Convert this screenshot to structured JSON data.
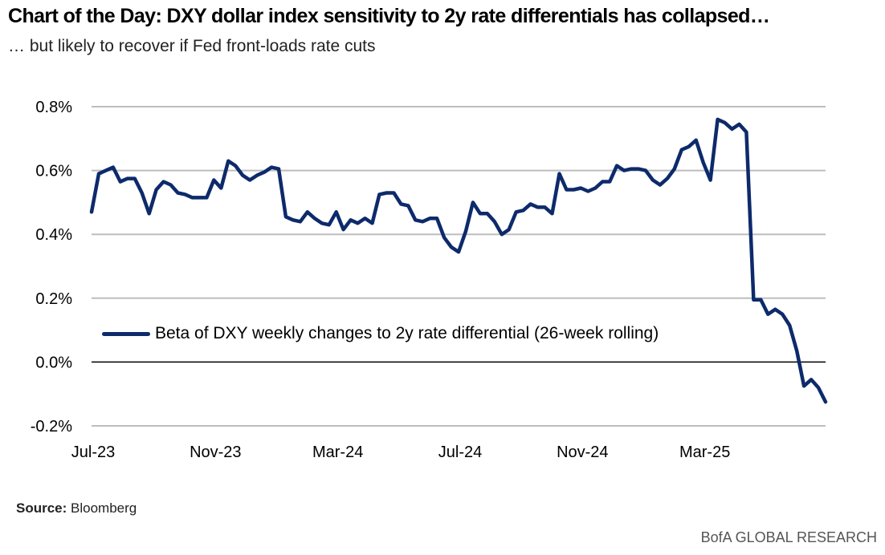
{
  "header": {
    "title": "Chart of the Day: DXY dollar index sensitivity to 2y rate differentials has collapsed…",
    "subtitle": "… but likely to recover if Fed front-loads rate cuts"
  },
  "footer": {
    "source_label": "Source:",
    "source_value": "Bloomberg",
    "brand": "BofA GLOBAL RESEARCH"
  },
  "colors": {
    "series": "#0d2a6b",
    "grid": "#bdbdbd",
    "zero_line": "#000000"
  },
  "chart_data": {
    "type": "line",
    "title": "Chart of the Day: DXY dollar index sensitivity to 2y rate differentials has collapsed…",
    "xlabel": "",
    "ylabel": "",
    "ylim": [
      -0.2,
      0.8
    ],
    "y_ticks": [
      {
        "value": 0.8,
        "label": "0.8%"
      },
      {
        "value": 0.6,
        "label": "0.6%"
      },
      {
        "value": 0.4,
        "label": "0.4%"
      },
      {
        "value": 0.2,
        "label": "0.2%"
      },
      {
        "value": 0.0,
        "label": "0.0%"
      },
      {
        "value": -0.2,
        "label": "-0.2%"
      }
    ],
    "x_ticks": [
      {
        "index": 0,
        "label": "Jul-23"
      },
      {
        "index": 17,
        "label": "Nov-23"
      },
      {
        "index": 34,
        "label": "Mar-24"
      },
      {
        "index": 51,
        "label": "Jul-24"
      },
      {
        "index": 68,
        "label": "Nov-24"
      },
      {
        "index": 85,
        "label": "Mar-25"
      }
    ],
    "grid": true,
    "legend": "center-left",
    "series": [
      {
        "name": "Beta of DXY weekly changes to 2y rate differential (26-week rolling)",
        "values": [
          0.47,
          0.59,
          0.6,
          0.61,
          0.565,
          0.575,
          0.575,
          0.53,
          0.465,
          0.54,
          0.565,
          0.555,
          0.53,
          0.525,
          0.515,
          0.515,
          0.515,
          0.57,
          0.545,
          0.63,
          0.615,
          0.585,
          0.57,
          0.585,
          0.595,
          0.61,
          0.605,
          0.455,
          0.445,
          0.44,
          0.47,
          0.45,
          0.435,
          0.43,
          0.47,
          0.415,
          0.445,
          0.435,
          0.45,
          0.435,
          0.525,
          0.53,
          0.53,
          0.495,
          0.49,
          0.445,
          0.44,
          0.45,
          0.45,
          0.39,
          0.36,
          0.345,
          0.41,
          0.5,
          0.465,
          0.465,
          0.44,
          0.4,
          0.415,
          0.47,
          0.475,
          0.495,
          0.485,
          0.485,
          0.465,
          0.59,
          0.54,
          0.54,
          0.545,
          0.535,
          0.545,
          0.565,
          0.565,
          0.615,
          0.6,
          0.605,
          0.605,
          0.6,
          0.57,
          0.555,
          0.575,
          0.605,
          0.665,
          0.675,
          0.695,
          0.625,
          0.57,
          0.76,
          0.75,
          0.73,
          0.745,
          0.72,
          0.195,
          0.195,
          0.15,
          0.165,
          0.15,
          0.115,
          0.035,
          -0.075,
          -0.055,
          -0.08,
          -0.125
        ]
      }
    ]
  }
}
